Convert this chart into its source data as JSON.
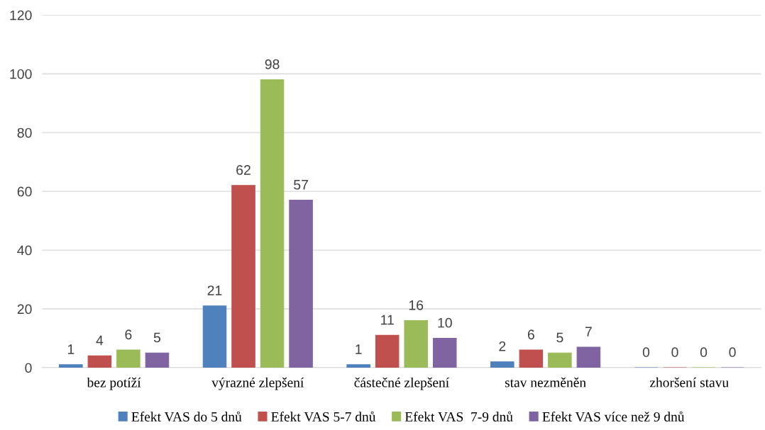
{
  "chart_data": {
    "type": "bar",
    "categories": [
      "bez potíží",
      "výrazné zlepšení",
      "částečné zlepšení",
      "stav nezměněn",
      "zhoršení stavu"
    ],
    "series": [
      {
        "name": "Efekt VAS do 5 dnů",
        "color": "#4f81bd",
        "values": [
          1,
          21,
          1,
          2,
          0
        ]
      },
      {
        "name": "Efekt VAS 5-7 dnů",
        "color": "#c0504d",
        "values": [
          4,
          62,
          11,
          6,
          0
        ]
      },
      {
        "name": "Efekt VAS  7-9 dnů",
        "color": "#9bbb59",
        "values": [
          6,
          98,
          16,
          5,
          0
        ]
      },
      {
        "name": "Efekt VAS více než 9 dnů",
        "color": "#8064a2",
        "values": [
          5,
          57,
          10,
          7,
          0
        ]
      }
    ],
    "ylim": [
      0,
      120
    ],
    "yticks": [
      0,
      20,
      40,
      60,
      80,
      100,
      120
    ],
    "grid": "y",
    "legend": "bottom",
    "data_labels": true
  }
}
